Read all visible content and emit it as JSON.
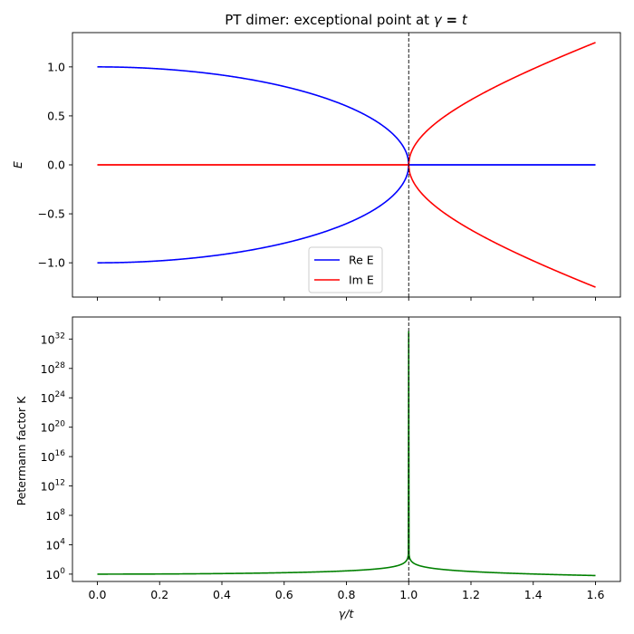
{
  "chart_data": [
    {
      "type": "line",
      "title": "PT dimer: exceptional point at γ = t",
      "xlabel": "",
      "ylabel": "E",
      "xlim": [
        -0.08,
        1.68
      ],
      "ylim": [
        -1.35,
        1.35
      ],
      "xticks": [
        0.0,
        0.2,
        0.4,
        0.6,
        0.8,
        1.0,
        1.2,
        1.4,
        1.6
      ],
      "xtick_labels_visible": false,
      "yticks": [
        -1.0,
        -0.5,
        0.0,
        0.5,
        1.0
      ],
      "ytick_labels": [
        "−1.0",
        "−0.5",
        "0.0",
        "0.5",
        "1.0"
      ],
      "vline": {
        "x": 1.0,
        "style": "dashed",
        "color": "#000000"
      },
      "legend": {
        "placement": "lower-center",
        "entries": [
          "Re E",
          "Im E"
        ]
      },
      "series": [
        {
          "name": "Re E",
          "color": "#0000ff",
          "formula": "±sqrt(max(0, 1 − x²))",
          "x_range": [
            0.0,
            1.6
          ],
          "x": [
            0.0,
            0.2,
            0.4,
            0.6,
            0.8,
            0.9,
            1.0,
            1.2,
            1.4,
            1.6
          ],
          "y_upper": [
            1.0,
            0.98,
            0.917,
            0.8,
            0.6,
            0.436,
            0.0,
            0.0,
            0.0,
            0.0
          ],
          "y_lower": [
            -1.0,
            -0.98,
            -0.917,
            -0.8,
            -0.6,
            -0.436,
            0.0,
            0.0,
            0.0,
            0.0
          ]
        },
        {
          "name": "Im E",
          "color": "#ff0000",
          "formula": "±sqrt(max(0, x² − 1))",
          "x_range": [
            0.0,
            1.6
          ],
          "x": [
            0.0,
            0.2,
            0.4,
            0.6,
            0.8,
            1.0,
            1.1,
            1.2,
            1.4,
            1.6
          ],
          "y_upper": [
            0.0,
            0.0,
            0.0,
            0.0,
            0.0,
            0.0,
            0.458,
            0.663,
            0.98,
            1.249
          ],
          "y_lower": [
            0.0,
            0.0,
            0.0,
            0.0,
            0.0,
            0.0,
            -0.458,
            -0.663,
            -0.98,
            -1.249
          ]
        }
      ]
    },
    {
      "type": "line",
      "title": "",
      "xlabel": "γ/t",
      "ylabel": "Petermann factor K",
      "xlim": [
        -0.08,
        1.68
      ],
      "yscale": "log",
      "ylim_log10": [
        -1.0,
        35.0
      ],
      "xticks": [
        0.0,
        0.2,
        0.4,
        0.6,
        0.8,
        1.0,
        1.2,
        1.4,
        1.6
      ],
      "xtick_labels": [
        "0.0",
        "0.2",
        "0.4",
        "0.6",
        "0.8",
        "1.0",
        "1.2",
        "1.4",
        "1.6"
      ],
      "ytick_exponents": [
        0,
        4,
        8,
        12,
        16,
        20,
        24,
        28,
        32
      ],
      "vline": {
        "x": 1.0,
        "style": "dashed",
        "color": "#000000"
      },
      "series": [
        {
          "name": "",
          "color": "#008000",
          "formula": "1/|1 − x²|",
          "x_range": [
            0.0,
            1.6
          ],
          "peak_log10": 33.0,
          "x": [
            0.0,
            0.4,
            0.8,
            0.9,
            0.95,
            1.0,
            1.05,
            1.1,
            1.2,
            1.6
          ],
          "log10_y": [
            0.0,
            0.076,
            0.444,
            0.721,
            1.01,
            33.0,
            0.99,
            0.678,
            0.357,
            -0.194
          ]
        }
      ]
    }
  ]
}
